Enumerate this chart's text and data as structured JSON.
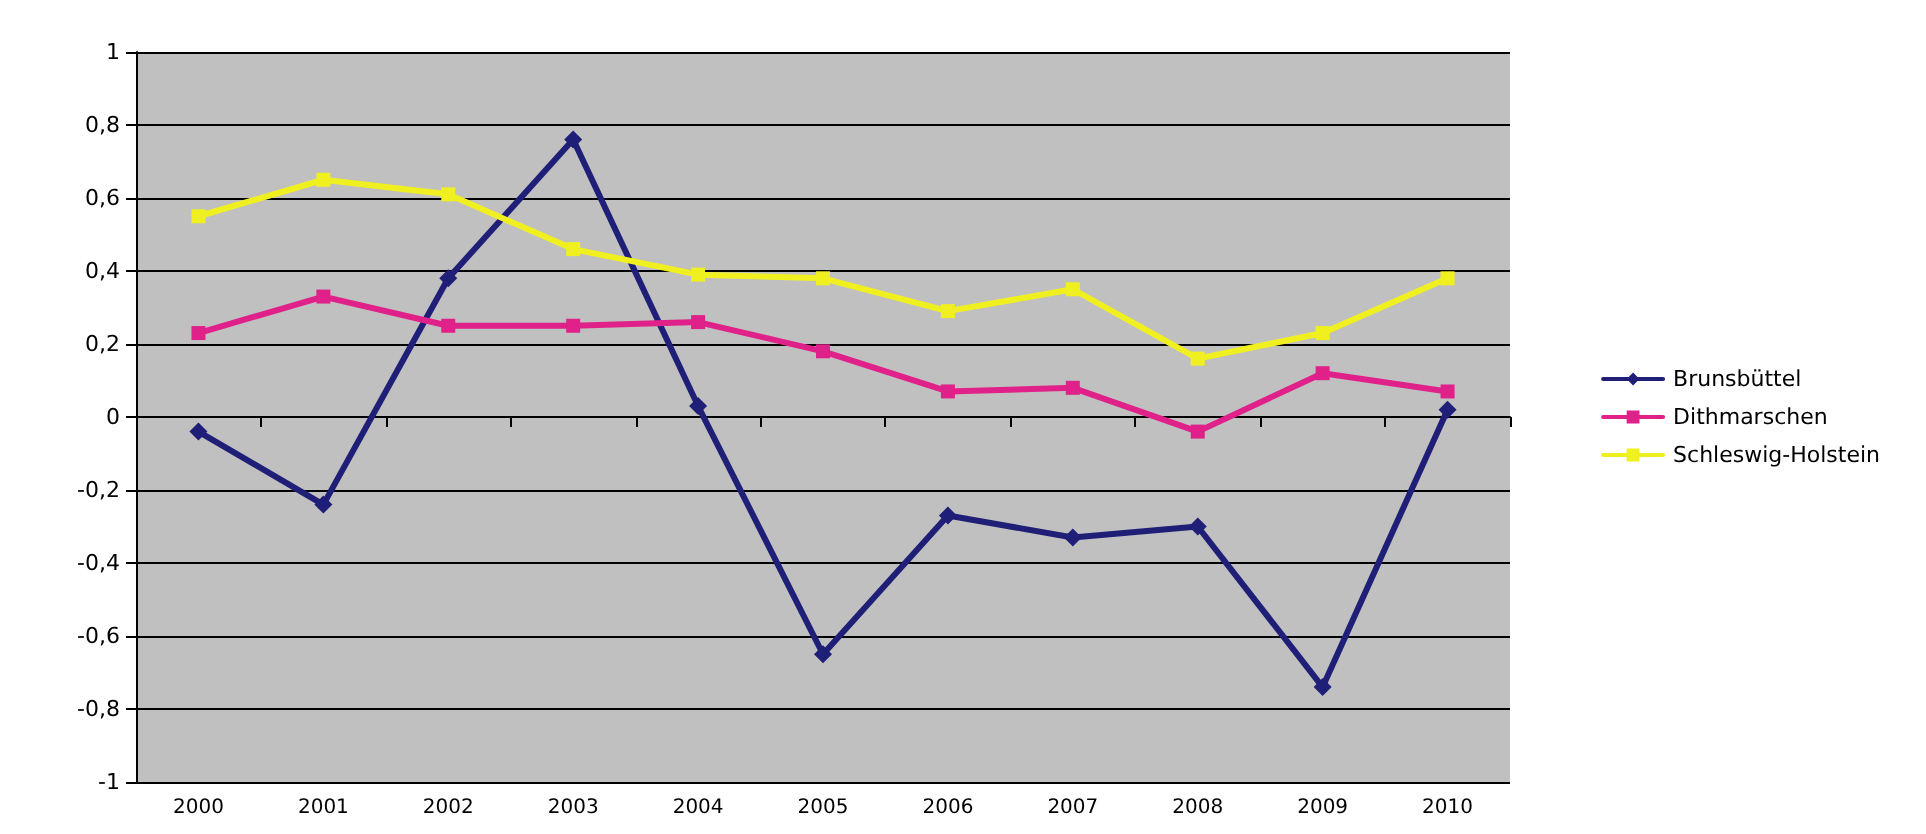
{
  "chart_data": {
    "type": "line",
    "categories": [
      "2000",
      "2001",
      "2002",
      "2003",
      "2004",
      "2005",
      "2006",
      "2007",
      "2008",
      "2009",
      "2010"
    ],
    "series": [
      {
        "name": "Brunsbüttel",
        "color": "#1f1f78",
        "marker": "diamond",
        "values": [
          -0.04,
          -0.24,
          0.38,
          0.76,
          0.03,
          -0.65,
          -0.27,
          -0.33,
          -0.3,
          -0.74,
          0.02
        ]
      },
      {
        "name": "Dithmarschen",
        "color": "#e0218a",
        "marker": "square",
        "values": [
          0.23,
          0.33,
          0.25,
          0.25,
          0.26,
          0.18,
          0.07,
          0.08,
          -0.04,
          0.12,
          0.07
        ]
      },
      {
        "name": "Schleswig-Holstein",
        "color": "#f0f020",
        "marker": "square",
        "values": [
          0.55,
          0.65,
          0.61,
          0.46,
          0.39,
          0.38,
          0.29,
          0.35,
          0.16,
          0.23,
          0.38
        ]
      }
    ],
    "ylim": [
      -1,
      1
    ],
    "yticks": [
      {
        "value": -1,
        "label": "-1"
      },
      {
        "value": -0.8,
        "label": "-0,8"
      },
      {
        "value": -0.6,
        "label": "-0,6"
      },
      {
        "value": -0.4,
        "label": "-0,4"
      },
      {
        "value": -0.2,
        "label": "-0,2"
      },
      {
        "value": 0,
        "label": "0"
      },
      {
        "value": 0.2,
        "label": "0,2"
      },
      {
        "value": 0.4,
        "label": "0,4"
      },
      {
        "value": 0.6,
        "label": "0,6"
      },
      {
        "value": 0.8,
        "label": "0,8"
      },
      {
        "value": 1,
        "label": "1"
      }
    ],
    "grid": "y",
    "legend": "right",
    "line_style": "solid"
  }
}
